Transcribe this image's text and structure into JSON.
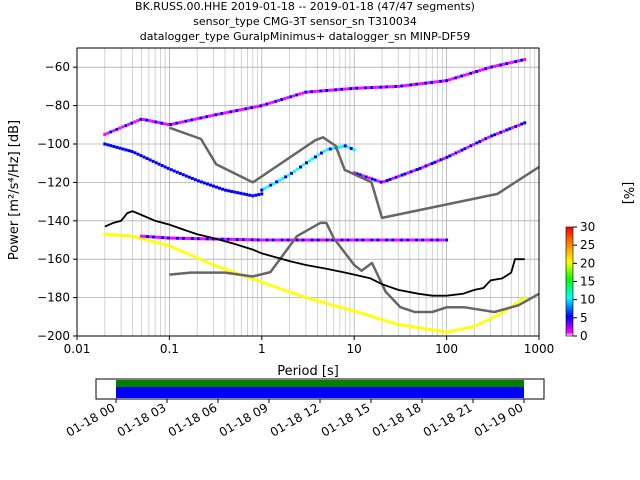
{
  "title_lines": [
    "BK.RUSS.00.HHE   2019-01-18 -- 2019-01-18  (47/47 segments)",
    "sensor_type CMG-3T sensor_sn T310034",
    "datalogger_type GuralpMinimus+ datalogger_sn MINP-DF59"
  ],
  "chart_data": {
    "type": "heatmap",
    "xlabel": "Period [s]",
    "ylabel": "Power [m²/s⁴/Hz] [dB]",
    "xscale": "log",
    "xlim": [
      0.01,
      1000
    ],
    "ylim": [
      -200,
      -50
    ],
    "x_ticks": [
      0.01,
      0.1,
      1,
      10,
      100,
      1000
    ],
    "x_tick_labels": [
      "0.01",
      "0.1",
      "1",
      "10",
      "100",
      "1000"
    ],
    "y_ticks": [
      -200,
      -180,
      -160,
      -140,
      -120,
      -100,
      -80,
      -60
    ],
    "y_tick_labels": [
      "−200",
      "−180",
      "−160",
      "−140",
      "−120",
      "−100",
      "−80",
      "−60"
    ],
    "grid": true,
    "colorbar": {
      "label": "[%]",
      "range": [
        0,
        30
      ],
      "ticks": [
        0,
        5,
        10,
        15,
        20,
        25,
        30
      ],
      "tick_labels": [
        "0",
        "5",
        "10",
        "15",
        "20",
        "25",
        "30"
      ],
      "colors": [
        "#ffffff",
        "#ff00ff",
        "#0000ff",
        "#00ffff",
        "#00ff00",
        "#ffff00",
        "#ff8000",
        "#ff0000"
      ]
    },
    "noise_models": {
      "nhnm": {
        "x": [
          0.1,
          0.22,
          0.32,
          0.8,
          3.8,
          4.6,
          6.3,
          7.9,
          15.4,
          20,
          354.8,
          1000
        ],
        "y": [
          -91.5,
          -97.4,
          -110.5,
          -120,
          -98,
          -96.5,
          -101,
          -113.5,
          -120,
          -138.5,
          -126,
          -112
        ]
      },
      "nlnm": {
        "x": [
          0.1,
          0.17,
          0.4,
          0.8,
          1.24,
          2.4,
          4.3,
          5,
          6,
          10,
          12,
          15.6,
          21.9,
          31.6,
          45,
          70,
          101,
          154,
          328,
          600,
          1000
        ],
        "y": [
          -168,
          -167,
          -167,
          -169,
          -166.7,
          -148,
          -141.1,
          -141.1,
          -149,
          -163,
          -166,
          -162,
          -177,
          -185,
          -187.5,
          -187.5,
          -185,
          -185,
          -187.5,
          -184,
          -178
        ]
      }
    },
    "mode_curve": {
      "x": [
        0.02,
        0.025,
        0.03,
        0.035,
        0.04,
        0.05,
        0.07,
        0.1,
        0.15,
        0.2,
        0.3,
        0.5,
        0.8,
        1,
        2,
        3,
        5,
        8,
        10,
        15,
        20,
        30,
        50,
        70,
        100,
        150,
        200,
        250,
        300,
        400,
        500,
        550,
        700
      ],
      "y": [
        -143,
        -141,
        -140,
        -136,
        -135,
        -137,
        -140,
        -142,
        -145,
        -147,
        -149,
        -152,
        -155,
        -157,
        -161,
        -163,
        -165,
        -167,
        -168,
        -170,
        -173,
        -176,
        -178,
        -179,
        -179,
        -178,
        -176,
        -175,
        -171,
        -170,
        -167,
        -160,
        -160
      ]
    },
    "histogram_bands": [
      {
        "name": "lower",
        "x": [
          0.02,
          0.04,
          0.1,
          0.3,
          1,
          3,
          10,
          30,
          100,
          200,
          400,
          700
        ],
        "y": [
          -147,
          -148,
          -153,
          -163,
          -172,
          -180,
          -187,
          -194,
          -198,
          -195,
          -188,
          -180
        ],
        "level": 20
      },
      {
        "name": "upper-left",
        "x": [
          0.02,
          0.04,
          0.1,
          0.2,
          0.4,
          0.8,
          1
        ],
        "y": [
          -100,
          -104,
          -113,
          -119,
          -124,
          -127,
          -126
        ],
        "level": 5
      },
      {
        "name": "upper-mid",
        "x": [
          1,
          2,
          3,
          5,
          8,
          10
        ],
        "y": [
          -124,
          -116,
          -110,
          -103,
          -101,
          -103
        ],
        "level": 8
      },
      {
        "name": "upper-right",
        "x": [
          10,
          20,
          50,
          100,
          300,
          700
        ],
        "y": [
          -115,
          -120,
          -113,
          -107,
          -96,
          -89
        ],
        "level": 3
      },
      {
        "name": "top-cluster",
        "x": [
          0.02,
          0.05,
          0.1,
          0.3,
          1,
          3,
          10,
          30,
          100,
          300,
          700
        ],
        "y": [
          -95,
          -87,
          -90,
          -85,
          -80,
          -73,
          -71,
          -70,
          -67,
          -60,
          -56
        ],
        "level": 2
      },
      {
        "name": "mid-line",
        "x": [
          0.05,
          0.1,
          1,
          10,
          30,
          100
        ],
        "y": [
          -148,
          -149,
          -150,
          -150,
          -150,
          -150
        ],
        "level": 2
      }
    ]
  },
  "time_axis": {
    "tick_labels": [
      "01-18 00",
      "01-18 03",
      "01-18 06",
      "01-18 09",
      "01-18 12",
      "01-18 15",
      "01-18 18",
      "01-18 21",
      "01-19 00"
    ],
    "coverage_colors": {
      "top": "#007f00",
      "bottom": "#0000ff"
    }
  }
}
